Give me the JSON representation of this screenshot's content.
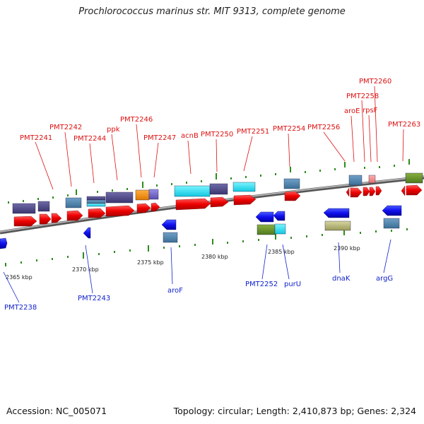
{
  "title": "Prochlorococcus marinus str. MIT 9313, complete genome",
  "footer": {
    "accession": "Accession: NC_005071",
    "topology": "Topology: circular; Length: 2,410,873 bp; Genes: 2,324"
  },
  "colors": {
    "backbone": "#888888",
    "forward_label": "#dd1111",
    "reverse_label": "#1122cc",
    "tick": "#2e8b1e",
    "scale_text": "#222222"
  },
  "scale_labels": [
    "2365 kbp",
    "2370 kbp",
    "2375 kbp",
    "2380 kbp",
    "2385 kbp",
    "2390 kbp"
  ],
  "forward_genes": [
    {
      "label": "PMT2241"
    },
    {
      "label": "PMT2242"
    },
    {
      "label": "PMT2244"
    },
    {
      "label": "ppk"
    },
    {
      "label": "PMT2246"
    },
    {
      "label": "PMT2247"
    },
    {
      "label": "acnB"
    },
    {
      "label": "PMT2250"
    },
    {
      "label": "PMT2251"
    },
    {
      "label": "PMT2254"
    },
    {
      "label": "PMT2256"
    },
    {
      "label": "aroE"
    },
    {
      "label": "PMT2258"
    },
    {
      "label": "rpsF"
    },
    {
      "label": "PMT2260"
    },
    {
      "label": "PMT2263"
    }
  ],
  "reverse_genes": [
    {
      "label": "PMT2238"
    },
    {
      "label": "PMT2243"
    },
    {
      "label": "aroF"
    },
    {
      "label": "PMT2252"
    },
    {
      "label": "purU"
    },
    {
      "label": "dnaK"
    },
    {
      "label": "argG"
    }
  ]
}
